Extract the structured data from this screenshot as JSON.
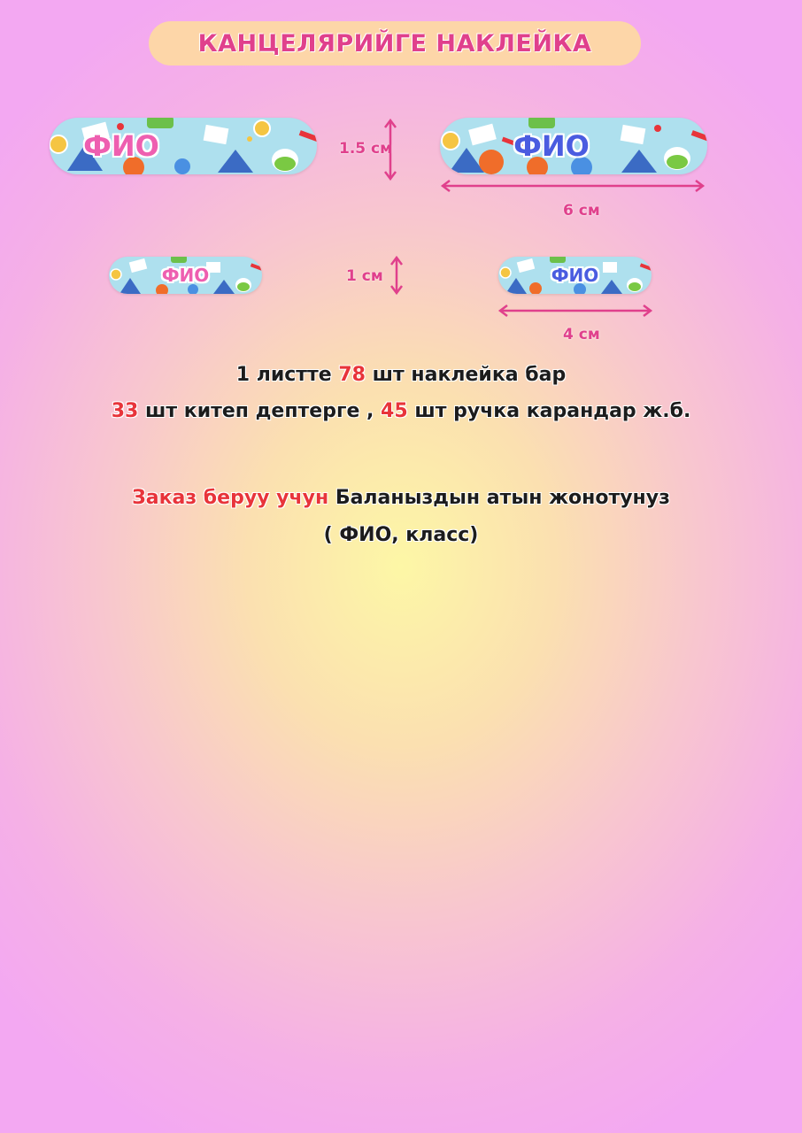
{
  "title": "КАНЦЕЛЯРИЙГЕ НАКЛЕЙКА",
  "stickers": {
    "large_pink": "ФИО",
    "large_blue": "ФИО",
    "small_pink": "ФИО",
    "small_blue": "ФИО"
  },
  "dimensions": {
    "large_height": "1.5 см",
    "large_width": "6 см",
    "small_height": "1 см",
    "small_width": "4 см"
  },
  "info": {
    "line1": {
      "a": "1 листте ",
      "b": "78",
      "c": " шт наклейка бар"
    },
    "line2": {
      "a": "33",
      "b": " шт китеп дептерге , ",
      "c": "45",
      "d": " шт ручка карандар ж.б."
    },
    "line3": {
      "a": "Заказ беруу учун",
      "b": " Баланыздын атын жонотунуз"
    },
    "line4": "( ФИО, класс)"
  },
  "colors": {
    "accent_pink": "#e0408c",
    "accent_red": "#e8343a",
    "title_pill": "#fdd6a8",
    "sticker_bg": "#aee0ee",
    "fio_pink": "#ee5fb0",
    "fio_blue": "#4a5ce0"
  }
}
